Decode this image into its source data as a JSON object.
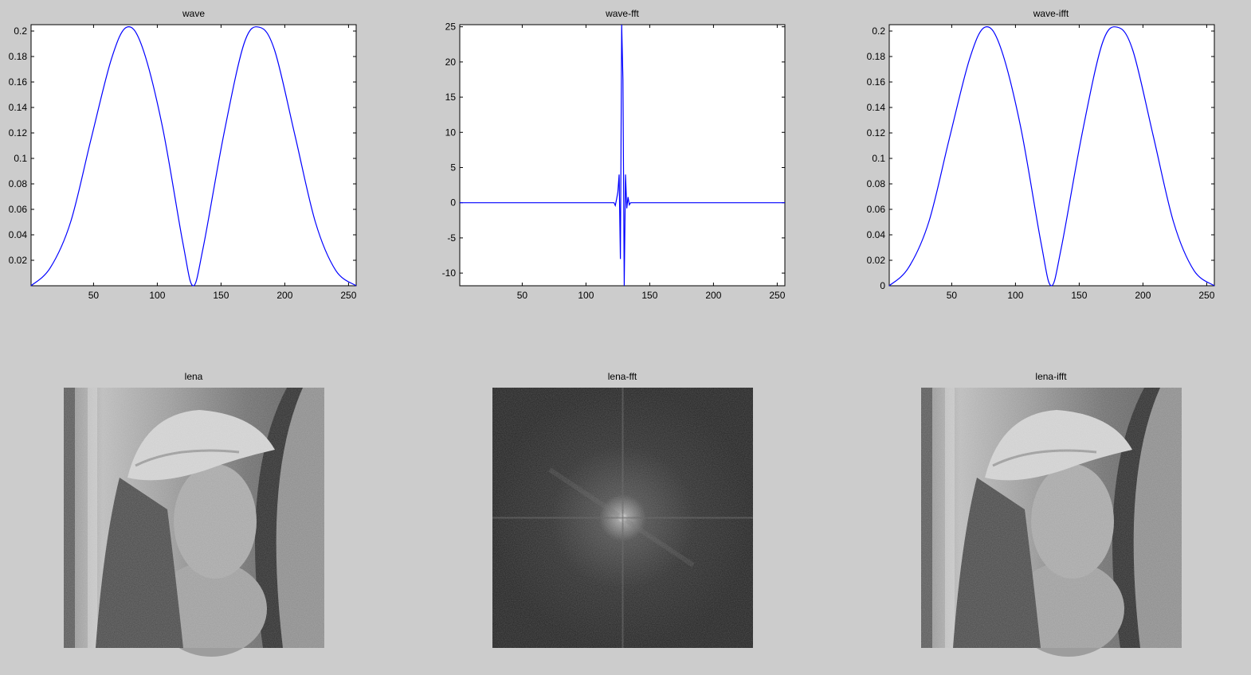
{
  "chart_data": [
    {
      "type": "line",
      "title": "wave",
      "xlim": [
        1,
        256
      ],
      "ylim": [
        0,
        0.205
      ],
      "xticks": [
        "50",
        "100",
        "150",
        "200",
        "250"
      ],
      "yticks": [
        "0.02",
        "0.04",
        "0.06",
        "0.08",
        "0.1",
        "0.12",
        "0.14",
        "0.16",
        "0.18",
        "0.2"
      ],
      "series_color": "#0000ff",
      "series": {
        "x": [
          1,
          16,
          32,
          48,
          64,
          76,
          88,
          104,
          120,
          128,
          136,
          152,
          168,
          180,
          192,
          208,
          224,
          240,
          256
        ],
        "y": [
          0.0,
          0.014,
          0.05,
          0.115,
          0.178,
          0.203,
          0.188,
          0.125,
          0.034,
          0.0,
          0.03,
          0.118,
          0.19,
          0.203,
          0.185,
          0.118,
          0.05,
          0.012,
          0.0
        ]
      }
    },
    {
      "type": "line",
      "title": "wave-fft",
      "xlim": [
        1,
        256
      ],
      "ylim": [
        -11.8,
        25.3
      ],
      "xticks": [
        "50",
        "100",
        "150",
        "200",
        "250"
      ],
      "yticks": [
        "-10",
        "-5",
        "0",
        "5",
        "10",
        "15",
        "20",
        "25"
      ],
      "series_color": "#0000ff",
      "series": {
        "x": [
          1,
          122,
          123,
          124,
          125,
          126,
          127,
          128,
          129,
          130,
          131,
          132,
          133,
          134,
          135,
          256
        ],
        "y": [
          0,
          0,
          -0.4,
          0.5,
          1.5,
          4.0,
          -8.0,
          25.3,
          17.5,
          -11.8,
          4.0,
          -0.8,
          0.8,
          -0.3,
          0,
          0
        ]
      }
    },
    {
      "type": "line",
      "title": "wave-ifft",
      "xlim": [
        1,
        256
      ],
      "ylim": [
        0,
        0.205
      ],
      "xticks": [
        "50",
        "100",
        "150",
        "200",
        "250"
      ],
      "yticks": [
        "0",
        "0.02",
        "0.04",
        "0.06",
        "0.08",
        "0.1",
        "0.12",
        "0.14",
        "0.16",
        "0.18",
        "0.2"
      ],
      "series_color": "#0000ff",
      "series": {
        "x": [
          1,
          16,
          32,
          48,
          64,
          76,
          88,
          104,
          120,
          128,
          136,
          152,
          168,
          180,
          192,
          208,
          224,
          240,
          256
        ],
        "y": [
          0.0,
          0.014,
          0.05,
          0.115,
          0.178,
          0.203,
          0.188,
          0.125,
          0.034,
          0.0,
          0.03,
          0.118,
          0.19,
          0.203,
          0.185,
          0.118,
          0.05,
          0.012,
          0.0
        ]
      }
    },
    {
      "type": "image",
      "title": "lena"
    },
    {
      "type": "image",
      "title": "lena-fft"
    },
    {
      "type": "image",
      "title": "lena-ifft"
    }
  ]
}
